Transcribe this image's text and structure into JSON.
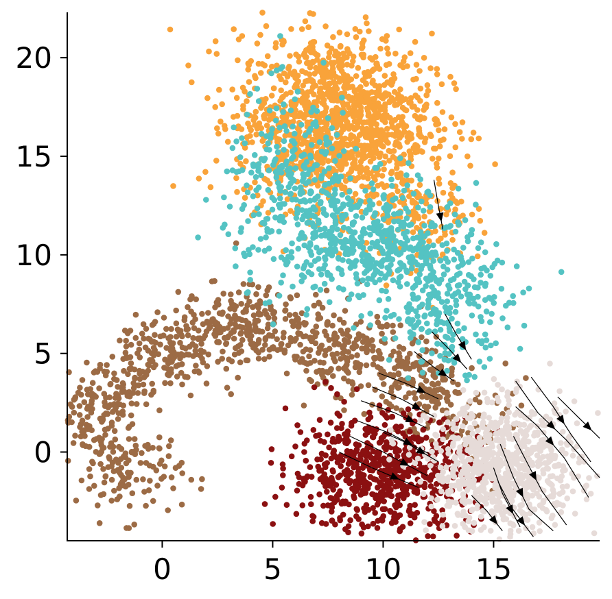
{
  "chart_data": {
    "type": "scatter",
    "title": "",
    "xlabel": "",
    "ylabel": "",
    "xlim": [
      -4.3,
      19.8
    ],
    "ylim": [
      -4.5,
      22.3
    ],
    "x_ticks": [
      0,
      5,
      10,
      15
    ],
    "x_tick_labels": [
      "0",
      "5",
      "10",
      "15"
    ],
    "y_ticks": [
      0,
      5,
      10,
      15,
      20
    ],
    "y_tick_labels": [
      "0",
      "5",
      "10",
      "15",
      "20"
    ],
    "grid": false,
    "legend": "none",
    "series": [
      {
        "color": "#9c6b45",
        "clusters": [
          {
            "path": [
              [
                -4.0,
                1.0
              ],
              [
                -2.5,
                2.8
              ],
              [
                -1.0,
                4.2
              ],
              [
                1.0,
                5.6
              ],
              [
                3.0,
                6.4
              ],
              [
                5.0,
                6.4
              ],
              [
                7.0,
                5.6
              ],
              [
                9.0,
                5.0
              ],
              [
                11.0,
                4.0
              ],
              [
                13.0,
                2.5
              ]
            ],
            "spread": 1.1,
            "n": 900
          },
          {
            "center": [
              -1.5,
              -1.0
            ],
            "sd": [
              1.2,
              1.2
            ],
            "n": 120
          },
          {
            "center": [
              14.5,
              1.0
            ],
            "sd": [
              1.2,
              1.2
            ],
            "n": 50
          }
        ]
      },
      {
        "color": "#f9a33a",
        "clusters": [
          {
            "center": [
              7.8,
              16.8
            ],
            "sd": [
              2.2,
              2.2
            ],
            "n": 1300
          },
          {
            "center": [
              11.5,
              12.0
            ],
            "sd": [
              1.2,
              1.5
            ],
            "n": 150
          }
        ]
      },
      {
        "color": "#54c3c3",
        "clusters": [
          {
            "center": [
              6.0,
              13.5
            ],
            "sd": [
              1.6,
              2.3
            ],
            "n": 300
          },
          {
            "center": [
              9.5,
              10.5
            ],
            "sd": [
              2.0,
              1.5
            ],
            "n": 450
          },
          {
            "center": [
              13.0,
              7.5
            ],
            "sd": [
              1.4,
              1.6
            ],
            "n": 250
          }
        ]
      },
      {
        "color": "#8b1011",
        "clusters": [
          {
            "center": [
              10.0,
              -1.0
            ],
            "sd": [
              2.1,
              1.5
            ],
            "n": 700
          }
        ]
      },
      {
        "color": "#e6dbd8",
        "clusters": [
          {
            "center": [
              15.5,
              -0.8
            ],
            "sd": [
              1.7,
              1.6
            ],
            "n": 800
          }
        ]
      }
    ],
    "streamlines": [
      [
        [
          12.3,
          13.8
        ],
        [
          12.5,
          12.5
        ],
        [
          12.7,
          11.3
        ]
      ],
      [
        [
          12.8,
          7.0
        ],
        [
          13.3,
          6.0
        ],
        [
          14.0,
          4.7
        ]
      ],
      [
        [
          12.2,
          6.1
        ],
        [
          13.0,
          5.2
        ],
        [
          13.8,
          4.2
        ]
      ],
      [
        [
          11.4,
          5.1
        ],
        [
          12.3,
          4.3
        ],
        [
          13.2,
          3.6
        ]
      ],
      [
        [
          9.8,
          4.0
        ],
        [
          11.0,
          3.5
        ],
        [
          12.5,
          2.7
        ]
      ],
      [
        [
          9.5,
          3.3
        ],
        [
          10.8,
          2.7
        ],
        [
          12.3,
          1.8
        ]
      ],
      [
        [
          9.0,
          2.6
        ],
        [
          10.5,
          2.0
        ],
        [
          12.0,
          1.2
        ]
      ],
      [
        [
          8.8,
          1.6
        ],
        [
          10.2,
          1.0
        ],
        [
          12.1,
          -0.1
        ]
      ],
      [
        [
          8.5,
          0.8
        ],
        [
          10.0,
          0.0
        ],
        [
          12.0,
          -1.2
        ]
      ],
      [
        [
          8.0,
          0.0
        ],
        [
          9.5,
          -0.8
        ],
        [
          11.6,
          -1.8
        ]
      ],
      [
        [
          10.0,
          1.0
        ],
        [
          11.0,
          0.5
        ],
        [
          12.5,
          -0.5
        ]
      ],
      [
        [
          16.0,
          3.6
        ],
        [
          17.0,
          2.0
        ],
        [
          18.3,
          0.6
        ],
        [
          19.8,
          -1.3
        ]
      ],
      [
        [
          16.0,
          2.3
        ],
        [
          17.0,
          1.3
        ],
        [
          18.2,
          -0.3
        ],
        [
          19.3,
          -2.3
        ]
      ],
      [
        [
          16.7,
          3.8
        ],
        [
          17.7,
          2.3
        ],
        [
          18.5,
          0.9
        ],
        [
          19.4,
          -0.5
        ]
      ],
      [
        [
          17.9,
          2.8
        ],
        [
          18.8,
          1.8
        ],
        [
          19.8,
          0.7
        ]
      ],
      [
        [
          15.9,
          0.8
        ],
        [
          16.5,
          -0.5
        ],
        [
          17.2,
          -2.0
        ],
        [
          18.3,
          -3.7
        ]
      ],
      [
        [
          15.3,
          0.4
        ],
        [
          15.9,
          -1.3
        ],
        [
          16.6,
          -2.9
        ],
        [
          17.7,
          -4.0
        ]
      ],
      [
        [
          15.0,
          -0.8
        ],
        [
          15.4,
          -2.1
        ],
        [
          16.2,
          -3.8
        ]
      ],
      [
        [
          15.2,
          -1.5
        ],
        [
          15.8,
          -2.8
        ],
        [
          16.8,
          -4.3
        ]
      ],
      [
        [
          14.0,
          -2.2
        ],
        [
          14.7,
          -3.0
        ],
        [
          15.4,
          -4.0
        ]
      ]
    ]
  }
}
